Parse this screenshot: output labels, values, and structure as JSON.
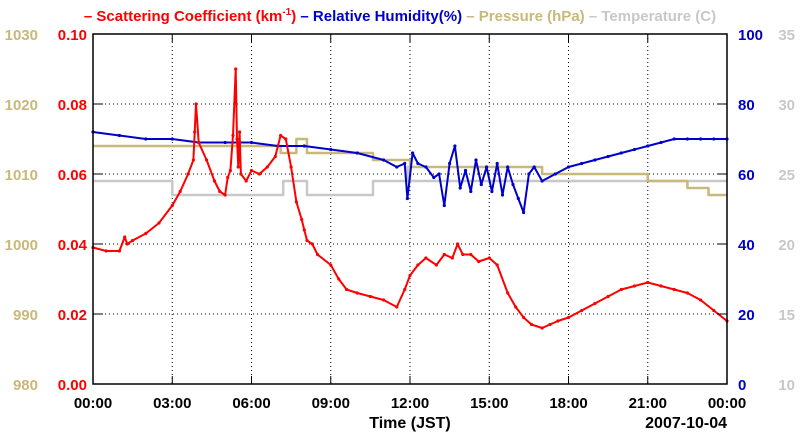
{
  "chart_data": {
    "type": "line",
    "xlabel": "Time (JST)",
    "date_label": "2007-10-04",
    "grid": true,
    "x_ticks": [
      "00:00",
      "03:00",
      "06:00",
      "09:00",
      "12:00",
      "15:00",
      "18:00",
      "21:00",
      "00:00"
    ],
    "xlim_hours": [
      0,
      24
    ],
    "legend": {
      "placement": "top",
      "entries": [
        {
          "prefix": "– ",
          "name": "Scattering Coefficient (km",
          "sup": "-1",
          "suffix": ")",
          "color": "#ff0000"
        },
        {
          "prefix": " – ",
          "name": "Relative Humidity(%)",
          "sup": "",
          "suffix": "",
          "color": "#0000cc"
        },
        {
          "prefix": " – ",
          "name": "Pressure (hPa)",
          "sup": "",
          "suffix": "",
          "color": "#c8b97a"
        },
        {
          "prefix": " – ",
          "name": "Temperature (C)",
          "sup": "",
          "suffix": "",
          "color": "#c8c8c8"
        }
      ]
    },
    "axes": {
      "left_outer": {
        "series": "pressure",
        "ylim": [
          980,
          1030
        ],
        "ticks": [
          "980",
          "990",
          "1000",
          "1010",
          "1020",
          "1030"
        ],
        "color": "#c8b97a"
      },
      "left_inner": {
        "series": "scattering",
        "ylim": [
          0,
          0.1
        ],
        "ticks": [
          "0.00",
          "0.02",
          "0.04",
          "0.06",
          "0.08",
          "0.10"
        ],
        "color": "#ff0000"
      },
      "right_inner": {
        "series": "humidity",
        "ylim": [
          0,
          100
        ],
        "ticks": [
          "0",
          "20",
          "40",
          "60",
          "80",
          "100"
        ],
        "color": "#0000cc"
      },
      "right_outer": {
        "series": "temperature",
        "ylim": [
          10,
          35
        ],
        "ticks": [
          "10",
          "15",
          "20",
          "25",
          "30",
          "35"
        ],
        "color": "#c8c8c8"
      }
    },
    "series": [
      {
        "name": "Scattering Coefficient",
        "key": "scattering",
        "axis": "left_inner",
        "color": "#ff0000",
        "x": [
          0,
          0.5,
          1.0,
          1.2,
          1.3,
          1.5,
          2.0,
          2.5,
          3.0,
          3.3,
          3.6,
          3.8,
          3.85,
          3.9,
          4.0,
          4.3,
          4.6,
          4.8,
          5.0,
          5.1,
          5.2,
          5.3,
          5.4,
          5.45,
          5.5,
          5.55,
          5.6,
          5.8,
          6.0,
          6.3,
          6.6,
          6.9,
          7.1,
          7.3,
          7.5,
          7.7,
          7.9,
          8.0,
          8.1,
          8.3,
          8.5,
          9.0,
          9.3,
          9.6,
          10.0,
          10.5,
          11.0,
          11.5,
          11.8,
          12.0,
          12.3,
          12.6,
          13.0,
          13.3,
          13.6,
          13.8,
          14.0,
          14.3,
          14.6,
          15.0,
          15.3,
          15.7,
          16.0,
          16.3,
          16.6,
          17.0,
          17.3,
          17.6,
          18.0,
          18.5,
          19.0,
          19.5,
          20.0,
          20.5,
          21.0,
          21.5,
          22.0,
          22.5,
          23.0,
          23.5,
          24.0
        ],
        "values": [
          0.039,
          0.038,
          0.038,
          0.042,
          0.04,
          0.041,
          0.043,
          0.046,
          0.051,
          0.055,
          0.06,
          0.064,
          0.072,
          0.08,
          0.069,
          0.064,
          0.058,
          0.055,
          0.054,
          0.059,
          0.061,
          0.071,
          0.09,
          0.07,
          0.062,
          0.072,
          0.06,
          0.058,
          0.061,
          0.06,
          0.062,
          0.065,
          0.071,
          0.07,
          0.062,
          0.052,
          0.047,
          0.044,
          0.041,
          0.04,
          0.037,
          0.034,
          0.03,
          0.027,
          0.026,
          0.025,
          0.024,
          0.022,
          0.027,
          0.031,
          0.034,
          0.036,
          0.034,
          0.037,
          0.036,
          0.04,
          0.037,
          0.037,
          0.035,
          0.036,
          0.034,
          0.026,
          0.022,
          0.019,
          0.017,
          0.016,
          0.017,
          0.018,
          0.019,
          0.021,
          0.023,
          0.025,
          0.027,
          0.028,
          0.029,
          0.028,
          0.027,
          0.026,
          0.024,
          0.021,
          0.018
        ]
      },
      {
        "name": "Relative Humidity",
        "key": "humidity",
        "axis": "right_inner",
        "color": "#0000cc",
        "x": [
          0,
          1.0,
          2.0,
          3.0,
          4.0,
          5.0,
          6.0,
          7.0,
          8.0,
          9.0,
          10.0,
          11.0,
          11.5,
          11.8,
          11.9,
          12.1,
          12.3,
          12.6,
          12.9,
          13.1,
          13.3,
          13.5,
          13.7,
          13.9,
          14.1,
          14.3,
          14.5,
          14.7,
          14.9,
          15.1,
          15.3,
          15.5,
          15.7,
          15.9,
          16.1,
          16.3,
          16.5,
          16.7,
          17.0,
          17.5,
          18.0,
          18.5,
          19.0,
          19.5,
          20.0,
          20.5,
          21.0,
          21.5,
          22.0,
          22.5,
          23.0,
          23.5,
          24.0
        ],
        "values": [
          72,
          71,
          70,
          70,
          69,
          69,
          69,
          68,
          68,
          67,
          66,
          64,
          62,
          63,
          53,
          66,
          63,
          62,
          59,
          60,
          51,
          63,
          68,
          56,
          61,
          55,
          64,
          57,
          62,
          55,
          63,
          54,
          62,
          57,
          53,
          49,
          60,
          62,
          58,
          60,
          62,
          63,
          64,
          65,
          66,
          67,
          68,
          69,
          70,
          70,
          70,
          70,
          70
        ]
      },
      {
        "name": "Pressure",
        "key": "pressure",
        "axis": "left_outer",
        "color": "#c8b97a",
        "x": [
          0,
          7.1,
          7.1,
          7.7,
          7.7,
          8.1,
          8.1,
          10.6,
          10.6,
          12.0,
          12.0,
          17.0,
          17.0,
          21.0,
          21.0,
          22.5,
          22.5,
          23.3,
          23.3,
          24.0
        ],
        "values": [
          1014,
          1014,
          1013,
          1013,
          1015,
          1015,
          1013,
          1013,
          1012,
          1012,
          1011,
          1011,
          1010,
          1010,
          1009,
          1009,
          1008,
          1008,
          1007,
          1007
        ]
      },
      {
        "name": "Temperature",
        "key": "temperature",
        "axis": "right_outer",
        "color": "#c8c8c8",
        "x": [
          0,
          3.0,
          3.0,
          7.2,
          7.2,
          8.1,
          8.1,
          10.6,
          10.6,
          11.9,
          11.9,
          12.0,
          12.0,
          21.0,
          21.0,
          24.0
        ],
        "values": [
          24.5,
          24.5,
          23.5,
          23.5,
          24.5,
          24.5,
          23.5,
          23.5,
          24.5,
          24.5,
          25.5,
          25.5,
          24.5,
          24.5,
          24.5,
          24.5
        ]
      }
    ]
  }
}
